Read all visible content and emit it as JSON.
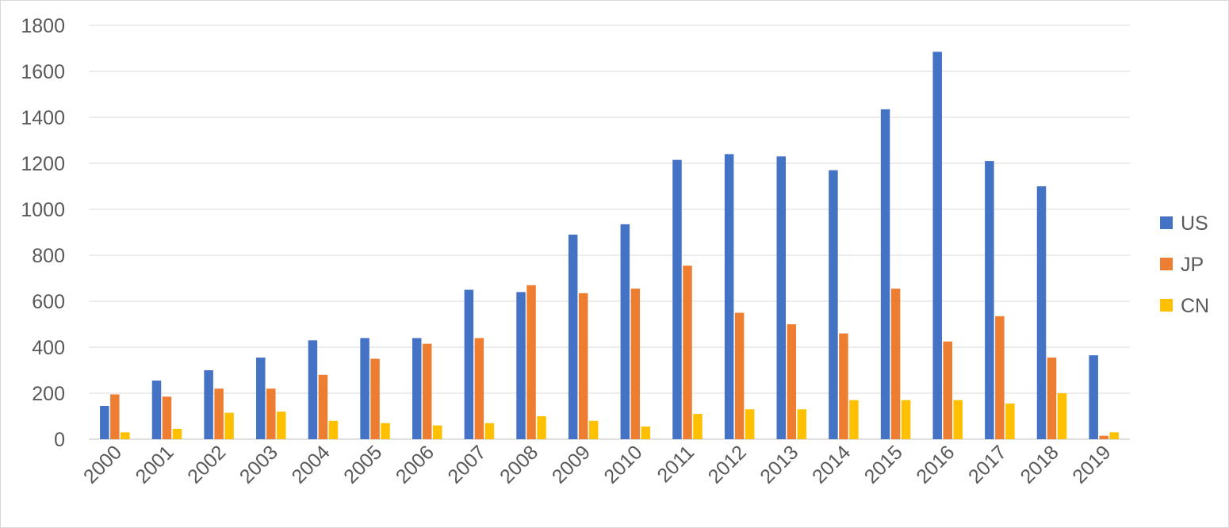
{
  "chart_data": {
    "type": "bar",
    "title": "",
    "xlabel": "",
    "ylabel": "",
    "ylim": [
      0,
      1800
    ],
    "yticks": [
      0,
      200,
      400,
      600,
      800,
      1000,
      1200,
      1400,
      1600,
      1800
    ],
    "grid": true,
    "legend_position": "right",
    "categories": [
      "2000",
      "2001",
      "2002",
      "2003",
      "2004",
      "2005",
      "2006",
      "2007",
      "2008",
      "2009",
      "2010",
      "2011",
      "2012",
      "2013",
      "2014",
      "2015",
      "2016",
      "2017",
      "2018",
      "2019"
    ],
    "series": [
      {
        "name": "US",
        "color": "#4472c4",
        "values": [
          145,
          255,
          300,
          355,
          430,
          440,
          440,
          650,
          640,
          890,
          935,
          1215,
          1240,
          1230,
          1170,
          1435,
          1685,
          1210,
          1100,
          365
        ]
      },
      {
        "name": "JP",
        "color": "#ed7d31",
        "values": [
          195,
          185,
          220,
          220,
          280,
          350,
          415,
          440,
          670,
          635,
          655,
          755,
          550,
          500,
          460,
          655,
          425,
          535,
          355,
          15
        ]
      },
      {
        "name": "CN",
        "color": "#ffc000",
        "values": [
          30,
          45,
          115,
          120,
          80,
          70,
          60,
          70,
          100,
          80,
          55,
          110,
          130,
          130,
          170,
          170,
          170,
          155,
          200,
          30
        ]
      }
    ]
  }
}
